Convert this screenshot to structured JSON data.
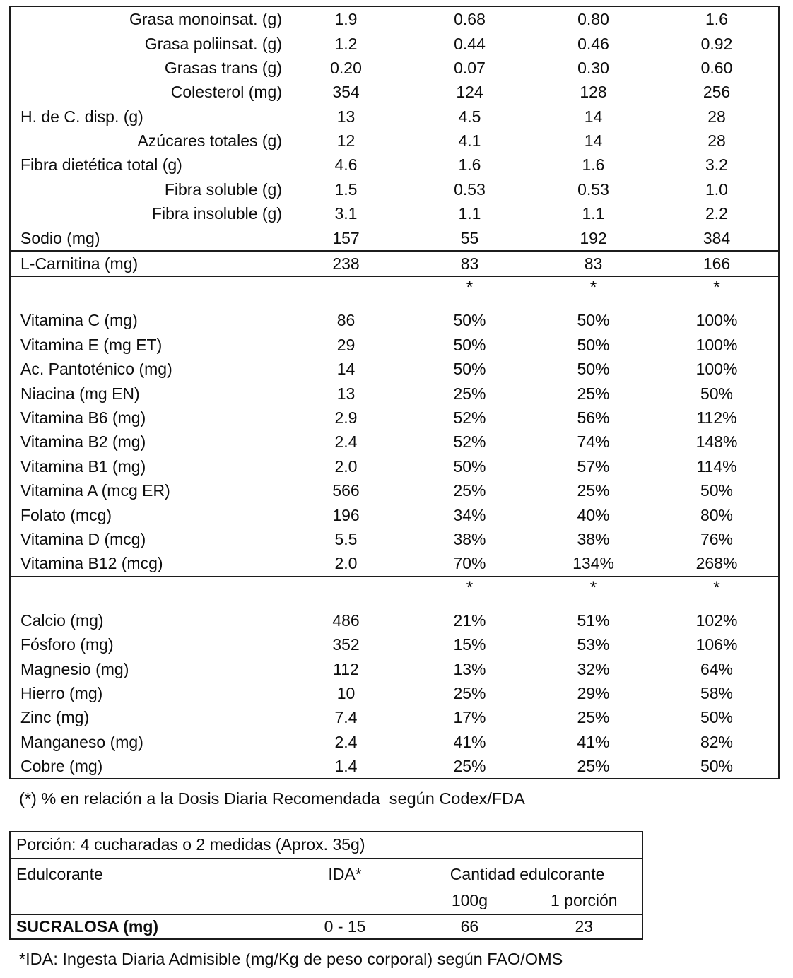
{
  "page": {
    "footnote_main": "(*) % en relación a la Dosis Diaria Recomendada  según Codex/FDA",
    "footnote_sweetener": "*IDA: Ingesta Diaria Admisible (mg/Kg de peso corporal) según FAO/OMS"
  },
  "main_table": {
    "sections": [
      {
        "rows": [
          {
            "label": "Grasa monoinsat. (g)",
            "align": "right",
            "values": [
              "1.9",
              "0.68",
              "0.80",
              "1.6"
            ]
          },
          {
            "label": "Grasa poliinsat. (g)",
            "align": "right",
            "values": [
              "1.2",
              "0.44",
              "0.46",
              "0.92"
            ]
          },
          {
            "label": "Grasas trans (g)",
            "align": "right",
            "values": [
              "0.20",
              "0.07",
              "0.30",
              "0.60"
            ]
          },
          {
            "label": "Colesterol (mg)",
            "align": "right",
            "values": [
              "354",
              "124",
              "128",
              "256"
            ]
          },
          {
            "label": "H. de C. disp. (g)",
            "align": "left",
            "values": [
              "13",
              "4.5",
              "14",
              "28"
            ]
          },
          {
            "label": "Azúcares totales (g)",
            "align": "right",
            "values": [
              "12",
              "4.1",
              "14",
              "28"
            ]
          },
          {
            "label": "Fibra dietética total (g)",
            "align": "left",
            "values": [
              "4.6",
              "1.6",
              "1.6",
              "3.2"
            ]
          },
          {
            "label": "Fibra soluble (g)",
            "align": "right",
            "values": [
              "1.5",
              "0.53",
              "0.53",
              "1.0"
            ]
          },
          {
            "label": "Fibra insoluble (g)",
            "align": "right",
            "values": [
              "3.1",
              "1.1",
              "1.1",
              "2.2"
            ]
          },
          {
            "label": "Sodio (mg)",
            "align": "left",
            "values": [
              "157",
              "55",
              "192",
              "384"
            ]
          }
        ]
      },
      {
        "rows": [
          {
            "label": "L-Carnitina (mg)",
            "align": "left",
            "values": [
              "238",
              "83",
              "83",
              "166"
            ]
          }
        ]
      },
      {
        "rows": [
          {
            "label": "",
            "align": "left",
            "star": true,
            "values": [
              "",
              "*",
              "*",
              "*"
            ]
          },
          {
            "label": "Vitamina C (mg)",
            "align": "left",
            "values": [
              "86",
              "50%",
              "50%",
              "100%"
            ]
          },
          {
            "label": "Vitamina E (mg ET)",
            "align": "left",
            "values": [
              "29",
              "50%",
              "50%",
              "100%"
            ]
          },
          {
            "label": "Ac. Pantoténico (mg)",
            "align": "left",
            "values": [
              "14",
              "50%",
              "50%",
              "100%"
            ]
          },
          {
            "label": "Niacina (mg EN)",
            "align": "left",
            "values": [
              "13",
              "25%",
              "25%",
              "50%"
            ]
          },
          {
            "label": "Vitamina B6 (mg)",
            "align": "left",
            "values": [
              "2.9",
              "52%",
              "56%",
              "112%"
            ]
          },
          {
            "label": "Vitamina B2 (mg)",
            "align": "left",
            "values": [
              "2.4",
              "52%",
              "74%",
              "148%"
            ]
          },
          {
            "label": "Vitamina B1 (mg)",
            "align": "left",
            "values": [
              "2.0",
              "50%",
              "57%",
              "114%"
            ]
          },
          {
            "label": "Vitamina A (mcg ER)",
            "align": "left",
            "values": [
              "566",
              "25%",
              "25%",
              "50%"
            ]
          },
          {
            "label": "Folato (mcg)",
            "align": "left",
            "values": [
              "196",
              "34%",
              "40%",
              "80%"
            ]
          },
          {
            "label": "Vitamina D (mcg)",
            "align": "left",
            "values": [
              "5.5",
              "38%",
              "38%",
              "76%"
            ]
          },
          {
            "label": "Vitamina B12 (mcg)",
            "align": "left",
            "values": [
              "2.0",
              "70%",
              "134%",
              "268%"
            ]
          }
        ]
      },
      {
        "rows": [
          {
            "label": "",
            "align": "left",
            "star": true,
            "values": [
              "",
              "*",
              "*",
              "*"
            ]
          },
          {
            "label": "Calcio (mg)",
            "align": "left",
            "values": [
              "486",
              "21%",
              "51%",
              "102%"
            ]
          },
          {
            "label": "Fósforo (mg)",
            "align": "left",
            "values": [
              "352",
              "15%",
              "53%",
              "106%"
            ]
          },
          {
            "label": "Magnesio (mg)",
            "align": "left",
            "values": [
              "112",
              "13%",
              "32%",
              "64%"
            ]
          },
          {
            "label": "Hierro (mg)",
            "align": "left",
            "values": [
              "10",
              "25%",
              "29%",
              "58%"
            ]
          },
          {
            "label": "Zinc (mg)",
            "align": "left",
            "values": [
              "7.4",
              "17%",
              "25%",
              "50%"
            ]
          },
          {
            "label": "Manganeso (mg)",
            "align": "left",
            "values": [
              "2.4",
              "41%",
              "41%",
              "82%"
            ]
          },
          {
            "label": "Cobre (mg)",
            "align": "left",
            "values": [
              "1.4",
              "25%",
              "25%",
              "50%"
            ]
          }
        ]
      }
    ]
  },
  "sweetener_table": {
    "portion_label": "Porción: 4 cucharadas o 2 medidas (Aprox. 35g)",
    "col_headers": {
      "sweetener": "Edulcorante",
      "ida": "IDA*",
      "amount": "Cantidad edulcorante",
      "per100": "100g",
      "per_portion": "1 porción"
    },
    "rows": [
      {
        "name": "SUCRALOSA (mg)",
        "ida": "0 - 15",
        "per100": "66",
        "per_portion": "23"
      }
    ]
  }
}
